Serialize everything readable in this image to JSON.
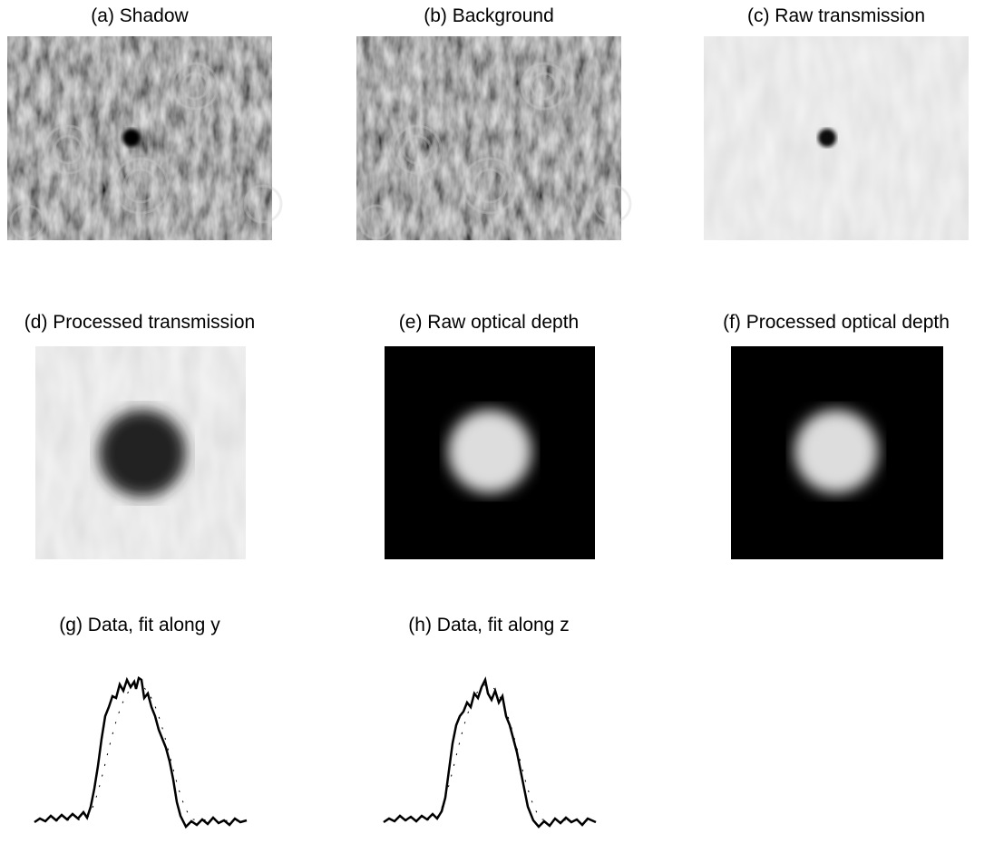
{
  "panels": [
    {
      "label": "(a) Shadow"
    },
    {
      "label": "(b) Background"
    },
    {
      "label": "(c) Raw transmission"
    },
    {
      "label": "(d) Processed transmission"
    },
    {
      "label": "(e) Raw optical depth"
    },
    {
      "label": "(f) Processed optical depth"
    },
    {
      "label": "(g) Data, fit along y"
    },
    {
      "label": "(h) Data, fit along z"
    }
  ]
}
